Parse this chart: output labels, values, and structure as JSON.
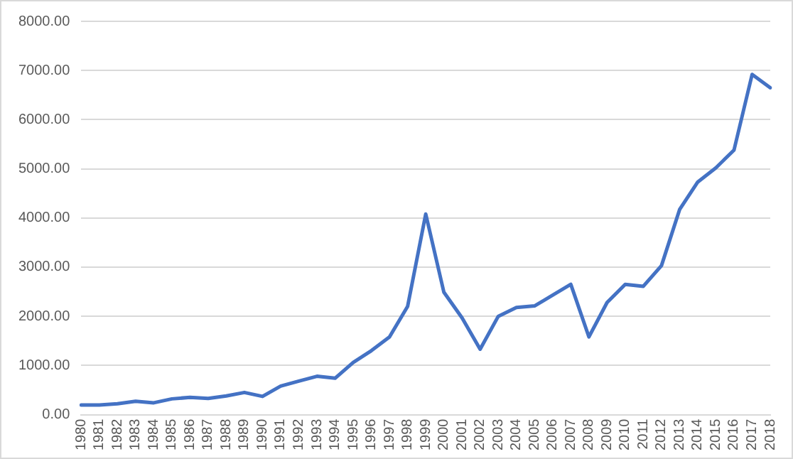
{
  "chart_data": {
    "type": "line",
    "categories": [
      "1980",
      "1981",
      "1982",
      "1983",
      "1984",
      "1985",
      "1986",
      "1987",
      "1988",
      "1989",
      "1990",
      "1991",
      "1992",
      "1993",
      "1994",
      "1995",
      "1996",
      "1997",
      "1998",
      "1999",
      "2000",
      "2001",
      "2002",
      "2003",
      "2004",
      "2005",
      "2006",
      "2007",
      "2008",
      "2009",
      "2010",
      "2011",
      "2012",
      "2013",
      "2014",
      "2015",
      "2016",
      "2017",
      "2018"
    ],
    "series": [
      {
        "color": "#4472c4",
        "values": [
          195,
          195,
          220,
          270,
          240,
          320,
          350,
          330,
          380,
          450,
          370,
          580,
          680,
          780,
          740,
          1060,
          1300,
          1580,
          2200,
          4080,
          2490,
          1970,
          1330,
          2000,
          2180,
          2210,
          2430,
          2650,
          1580,
          2280,
          2650,
          2610,
          3030,
          4170,
          4730,
          5020,
          5380,
          6920,
          6650
        ]
      }
    ],
    "ylim": [
      0,
      8000
    ],
    "yticks": [
      {
        "value": 0,
        "label": "0.00"
      },
      {
        "value": 1000,
        "label": "1000.00"
      },
      {
        "value": 2000,
        "label": "2000.00"
      },
      {
        "value": 3000,
        "label": "3000.00"
      },
      {
        "value": 4000,
        "label": "4000.00"
      },
      {
        "value": 5000,
        "label": "5000.00"
      },
      {
        "value": 6000,
        "label": "6000.00"
      },
      {
        "value": 7000,
        "label": "7000.00"
      },
      {
        "value": 8000,
        "label": "8000.00"
      }
    ],
    "grid": "y",
    "legend": false,
    "marker": "none",
    "line_style": "solid"
  }
}
